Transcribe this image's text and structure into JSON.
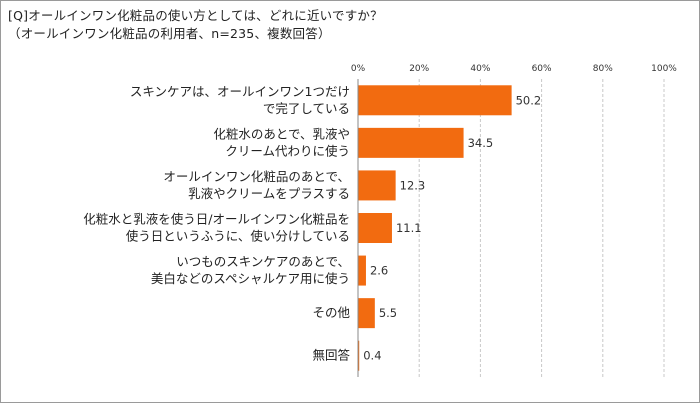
{
  "title": {
    "line1": "[Q]オールインワン化粧品の使い方としては、どれに近いですか？",
    "line2": "（オールインワン化粧品の利用者、n=235、複数回答）"
  },
  "chart_data": {
    "type": "bar",
    "orientation": "horizontal",
    "categories": [
      [
        "スキンケアは、オールインワン1つだけ",
        "で完了している"
      ],
      [
        "化粧水のあとで、乳液や",
        "クリーム代わりに使う"
      ],
      [
        "オールインワン化粧品のあとで、",
        "乳液やクリームをプラスする"
      ],
      [
        "化粧水と乳液を使う日/オールインワン化粧品を",
        "使う日というふうに、使い分けしている"
      ],
      [
        "いつものスキンケアのあとで、",
        "美白などのスペシャルケア用に使う"
      ],
      [
        "その他"
      ],
      [
        "無回答"
      ]
    ],
    "values": [
      50.2,
      34.5,
      12.3,
      11.1,
      2.6,
      5.5,
      0.4
    ],
    "value_labels": [
      "50.2",
      "34.5",
      "12.3",
      "11.1",
      "2.6",
      "5.5",
      "0.4"
    ],
    "xlim": [
      0,
      100
    ],
    "xticks": [
      "0%",
      "20%",
      "40%",
      "60%",
      "80%",
      "100%"
    ],
    "tick_values": [
      0,
      20,
      40,
      60,
      80,
      100
    ],
    "grid": true,
    "bar_color": "#F26B10",
    "grid_color": "#c8c8c8"
  }
}
